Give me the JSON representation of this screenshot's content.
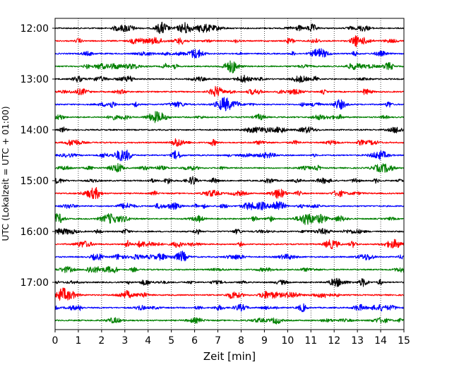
{
  "chart_data": {
    "type": "line",
    "title": "",
    "xlabel": "Zeit  [min]",
    "ylabel": "UTC (Lokalzeit = UTC + 01:00)",
    "xlim": [
      0,
      15
    ],
    "x_ticks": [
      "0",
      "1",
      "2",
      "3",
      "4",
      "5",
      "6",
      "7",
      "8",
      "9",
      "10",
      "11",
      "12",
      "13",
      "14",
      "15"
    ],
    "y_ticks": [
      {
        "label": "12:00",
        "trace_index": 0
      },
      {
        "label": "13:00",
        "trace_index": 4
      },
      {
        "label": "14:00",
        "trace_index": 8
      },
      {
        "label": "15:00",
        "trace_index": 12
      },
      {
        "label": "16:00",
        "trace_index": 16
      },
      {
        "label": "17:00",
        "trace_index": 20
      }
    ],
    "trace_interval_minutes": 15,
    "trace_count": 24,
    "trace_colors": [
      "#000000",
      "#ff0000",
      "#0000ff",
      "#008000"
    ],
    "grid": {
      "vertical_dotted": true,
      "horizontal": false
    },
    "legend": "none"
  }
}
